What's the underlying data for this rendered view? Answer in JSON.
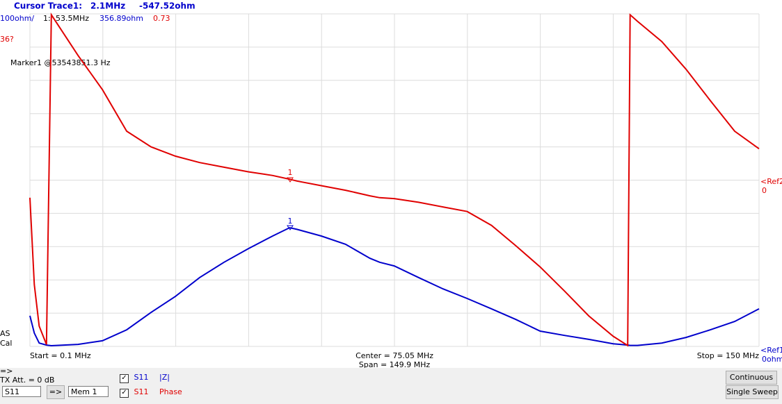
{
  "header": {
    "cursor_label": "Cursor Trace1:",
    "cursor_freq": "2.1MHz",
    "cursor_value": "-547.52ohm",
    "scale1": "100ohm/",
    "marker_index": "1:",
    "marker_freq": "53.5MHz",
    "marker_z": "356.89ohm",
    "marker_phase": "0.73",
    "scale2": "36?",
    "marker_note": "Marker1 @53543851.3 Hz"
  },
  "side": {
    "ref2": "<Ref2",
    "ref2_value": "0",
    "ref1": "<Ref1",
    "ref1_value": "0ohm",
    "as": "AS",
    "cal": "Cal"
  },
  "footer": {
    "start": "Start = 0.1 MHz",
    "center": "Center = 75.05 MHz",
    "span": "Span = 149.9 MHz",
    "stop": "Stop = 150 MHz"
  },
  "marker_tags": [
    "1",
    "1"
  ],
  "controls": {
    "arrow_label": "=>",
    "tx_att": "TX Att. = 0 dB",
    "port_select": "S11",
    "arrow_button": "=>",
    "mem_select": "Mem 1",
    "trace1_param": "S11",
    "trace2_param": "S11",
    "continuous": "Continuous",
    "single_sweep": "Single Sweep"
  },
  "chart_data": {
    "type": "line",
    "x": [
      0.1,
      1,
      2,
      3.5,
      4.5,
      10,
      15,
      20,
      25,
      30,
      35,
      40,
      45,
      50,
      53.5,
      55,
      60,
      65,
      70,
      72,
      75,
      80,
      85,
      90,
      95,
      100,
      105,
      110,
      115,
      120,
      123,
      123.5,
      125,
      130,
      135,
      140,
      145,
      150
    ],
    "xlim": [
      0.1,
      150
    ],
    "ylim": [
      0,
      1000
    ],
    "y2lim": [
      -180,
      180
    ],
    "series": [
      {
        "name": "|Z|",
        "color": "#0000cc",
        "values": [
          92,
          40,
          10,
          4,
          2,
          6,
          17,
          50,
          102,
          150,
          207,
          253,
          294,
          332,
          357,
          352,
          332,
          307,
          265,
          253,
          242,
          207,
          173,
          144,
          113,
          81,
          46,
          33,
          21,
          8,
          4,
          3,
          3,
          10,
          27,
          50,
          75,
          113
        ]
      },
      {
        "name": "Phase",
        "color": "#e00000",
        "axis": "y2",
        "values": [
          -19,
          -113,
          -158,
          -178,
          179,
          135,
          98,
          53,
          36,
          26,
          19,
          14,
          9,
          5,
          1,
          -1,
          -6,
          -11,
          -17,
          -19,
          -20,
          -24,
          -29,
          -34,
          -49,
          -71,
          -94,
          -120,
          -147,
          -169,
          -179,
          179,
          172,
          150,
          120,
          86,
          53,
          34
        ]
      }
    ]
  }
}
